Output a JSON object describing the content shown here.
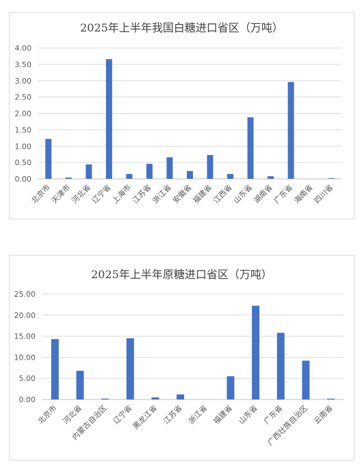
{
  "chart_data": [
    {
      "type": "bar",
      "title": "2025年上半年我国白糖进口省区（万吨）",
      "categories": [
        "北京市",
        "天津市",
        "河北省",
        "辽宁省",
        "上海市",
        "江苏省",
        "浙江省",
        "安徽省",
        "福建省",
        "江西省",
        "山东省",
        "湖南省",
        "广东省",
        "海南省",
        "四川省"
      ],
      "values": [
        1.22,
        0.04,
        0.44,
        3.66,
        0.15,
        0.46,
        0.66,
        0.24,
        0.73,
        0.15,
        1.88,
        0.08,
        2.96,
        0.0,
        0.02
      ],
      "ylim": [
        0,
        4
      ],
      "yticks": [
        "0.00",
        "0.50",
        "1.00",
        "1.50",
        "2.00",
        "2.50",
        "3.00",
        "3.50",
        "4.00"
      ],
      "grid": true,
      "color": "#4472c4"
    },
    {
      "type": "bar",
      "title": "2025年上半年原糖进口省区（万吨）",
      "categories": [
        "北京市",
        "河北省",
        "内蒙古自治区",
        "辽宁省",
        "黑龙江省",
        "江苏省",
        "浙江省",
        "福建省",
        "山东省",
        "广东省",
        "广西壮族自治区",
        "云南省"
      ],
      "values": [
        14.3,
        6.8,
        0.2,
        14.5,
        0.5,
        1.2,
        0.0,
        5.5,
        22.2,
        15.8,
        9.2,
        0.2
      ],
      "ylim": [
        0,
        25
      ],
      "yticks": [
        "0.00",
        "5.00",
        "10.00",
        "15.00",
        "20.00",
        "25.00"
      ],
      "grid": true,
      "color": "#4472c4"
    }
  ]
}
